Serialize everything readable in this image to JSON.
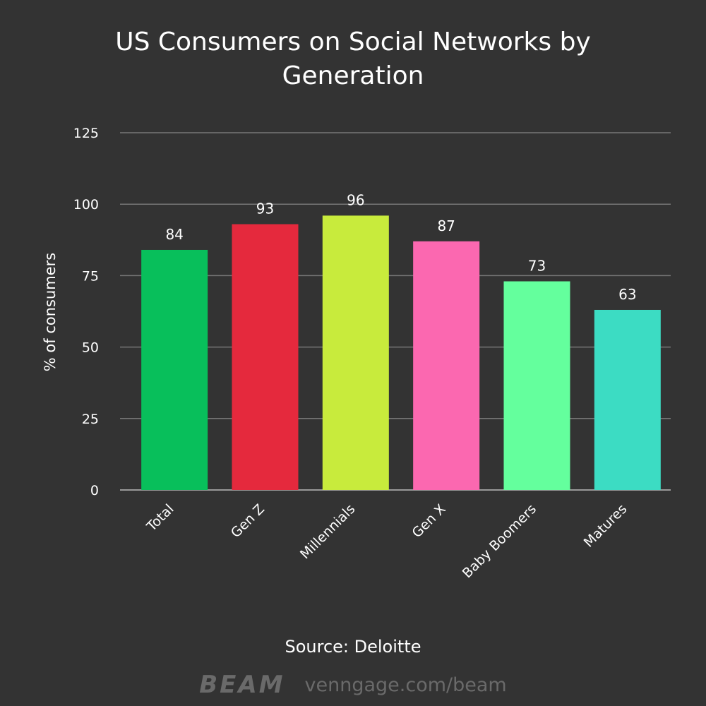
{
  "title": "US Consumers on Social Networks by Generation",
  "source": "Source: Deloitte",
  "footer": {
    "logo": "BEAM",
    "url": "venngage.com/beam"
  },
  "chart_data": {
    "type": "bar",
    "title": "US Consumers on Social Networks by Generation",
    "xlabel": "",
    "ylabel": "% of consumers",
    "ylim": [
      0,
      125
    ],
    "yticks": [
      0,
      25,
      50,
      75,
      100,
      125
    ],
    "grid": true,
    "categories": [
      "Total",
      "Gen Z",
      "Millennials",
      "Gen X",
      "Baby Boomers",
      "Matures"
    ],
    "values": [
      84,
      93,
      96,
      87,
      73,
      63
    ],
    "colors": [
      "#08bf5b",
      "#e5293d",
      "#c8eb3c",
      "#fb68b0",
      "#64ff9d",
      "#3cdcc3"
    ],
    "background": "#333333",
    "gridline_color": "#777777"
  }
}
